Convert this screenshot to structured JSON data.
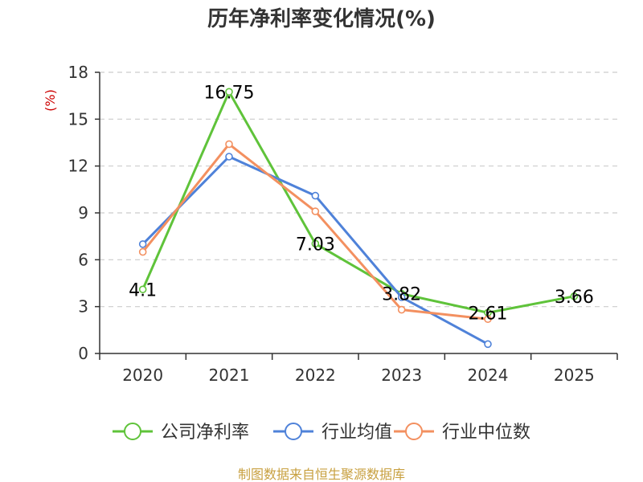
{
  "chart_data": {
    "type": "line",
    "title": "历年净利率变化情况(%)",
    "ylabel": "(%)",
    "xlabel": "",
    "categories": [
      "2020",
      "2021",
      "2022",
      "2023",
      "2024",
      "2025"
    ],
    "ylim": [
      0,
      18
    ],
    "yticks": [
      0,
      3,
      6,
      9,
      12,
      15,
      18
    ],
    "grid": true,
    "legend_position": "bottom",
    "series": [
      {
        "name": "公司净利率",
        "color": "#5fc33a",
        "values": [
          4.1,
          16.75,
          7.03,
          3.82,
          2.61,
          3.66
        ],
        "labels": [
          "4.1",
          "16.75",
          "7.03",
          "3.82",
          "2.61",
          "3.66"
        ]
      },
      {
        "name": "行业均值",
        "color": "#4f82d9",
        "values": [
          7.0,
          12.6,
          10.1,
          3.6,
          0.6,
          null
        ]
      },
      {
        "name": "行业中位数",
        "color": "#f39060",
        "values": [
          6.5,
          13.4,
          9.1,
          2.8,
          2.2,
          null
        ]
      }
    ]
  },
  "footer": {
    "source": "制图数据来自恒生聚源数据库"
  }
}
